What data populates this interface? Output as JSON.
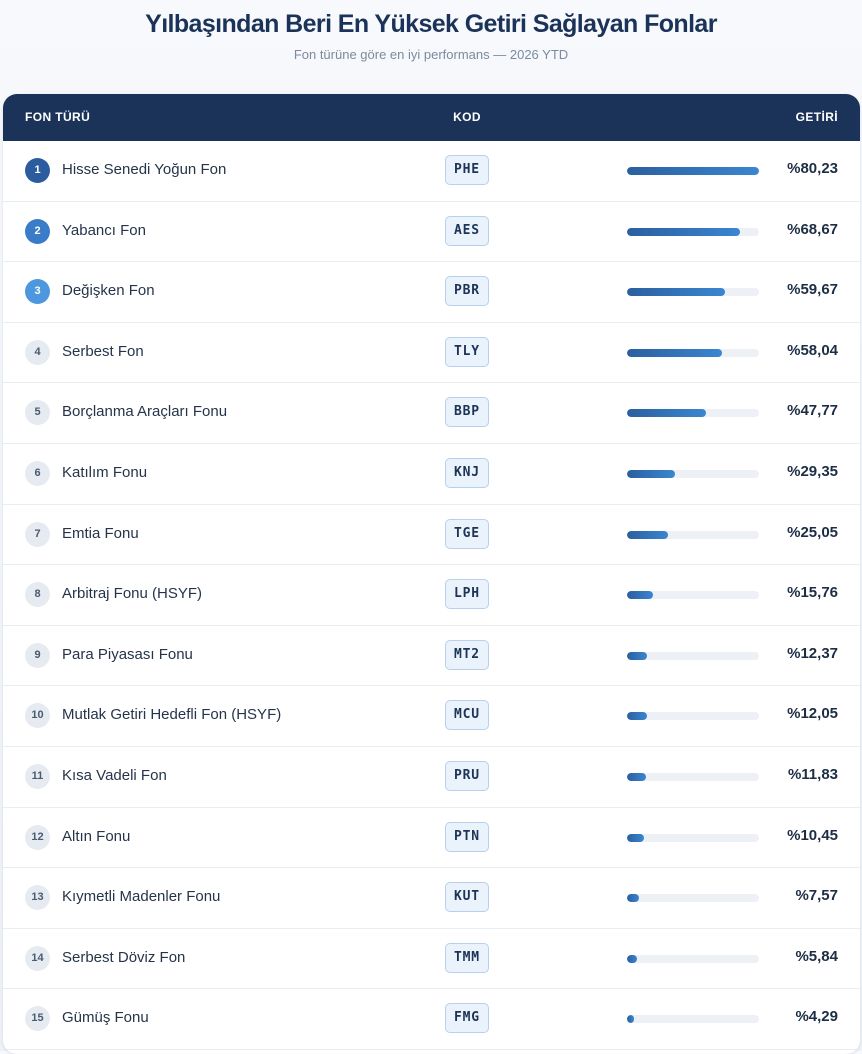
{
  "header": {
    "title": "Yılbaşından Beri En Yüksek Getiri Sağlayan Fonlar",
    "subtitle": "Fon türüne göre en iyi performans — 2026 YTD"
  },
  "table": {
    "columns": {
      "type": "FON TÜRÜ",
      "code": "KOD",
      "return": "GETİRİ"
    },
    "bar_max_value": 80.23,
    "rows": [
      {
        "rank": "1",
        "name": "Hisse Senedi Yoğun Fon",
        "code": "PHE",
        "return_label": "%80,23",
        "return_value": 80.23
      },
      {
        "rank": "2",
        "name": "Yabancı Fon",
        "code": "AES",
        "return_label": "%68,67",
        "return_value": 68.67
      },
      {
        "rank": "3",
        "name": "Değişken Fon",
        "code": "PBR",
        "return_label": "%59,67",
        "return_value": 59.67
      },
      {
        "rank": "4",
        "name": "Serbest Fon",
        "code": "TLY",
        "return_label": "%58,04",
        "return_value": 58.04
      },
      {
        "rank": "5",
        "name": "Borçlanma Araçları Fonu",
        "code": "BBP",
        "return_label": "%47,77",
        "return_value": 47.77
      },
      {
        "rank": "6",
        "name": "Katılım Fonu",
        "code": "KNJ",
        "return_label": "%29,35",
        "return_value": 29.35
      },
      {
        "rank": "7",
        "name": "Emtia Fonu",
        "code": "TGE",
        "return_label": "%25,05",
        "return_value": 25.05
      },
      {
        "rank": "8",
        "name": "Arbitraj Fonu (HSYF)",
        "code": "LPH",
        "return_label": "%15,76",
        "return_value": 15.76
      },
      {
        "rank": "9",
        "name": "Para Piyasası Fonu",
        "code": "MT2",
        "return_label": "%12,37",
        "return_value": 12.37
      },
      {
        "rank": "10",
        "name": "Mutlak Getiri Hedefli Fon (HSYF)",
        "code": "MCU",
        "return_label": "%12,05",
        "return_value": 12.05
      },
      {
        "rank": "11",
        "name": "Kısa Vadeli Fon",
        "code": "PRU",
        "return_label": "%11,83",
        "return_value": 11.83
      },
      {
        "rank": "12",
        "name": "Altın Fonu",
        "code": "PTN",
        "return_label": "%10,45",
        "return_value": 10.45
      },
      {
        "rank": "13",
        "name": "Kıymetli Madenler Fonu",
        "code": "KUT",
        "return_label": "%7,57",
        "return_value": 7.57
      },
      {
        "rank": "14",
        "name": "Serbest Döviz Fon",
        "code": "TMM",
        "return_label": "%5,84",
        "return_value": 5.84
      },
      {
        "rank": "15",
        "name": "Gümüş Fonu",
        "code": "FMG",
        "return_label": "%4,29",
        "return_value": 4.29
      }
    ]
  },
  "colors": {
    "header_bg": "#1b3358",
    "bar": "#3a86d0",
    "rank_1": "#2b5c9e",
    "rank_2": "#3b7cc9",
    "rank_3": "#4c97de"
  }
}
